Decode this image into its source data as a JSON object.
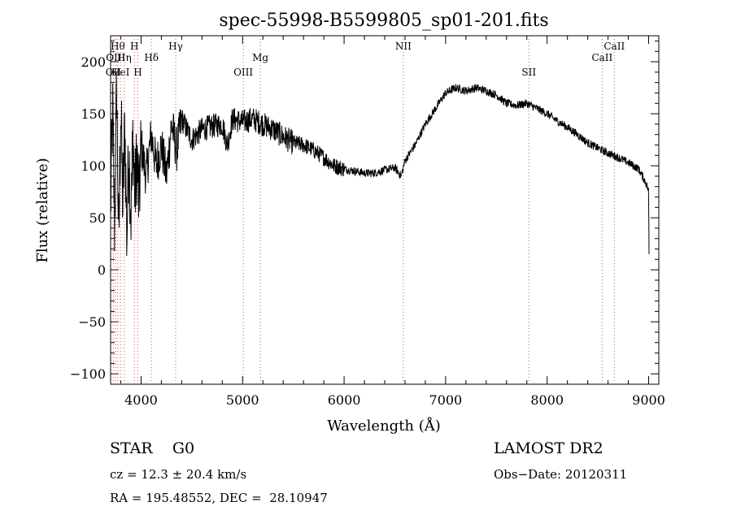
{
  "chart_data": {
    "type": "line",
    "title": "spec-55998-B5599805_sp01-201.fits",
    "xlabel": "Wavelength (Å)",
    "ylabel": "Flux (relative)",
    "xlim": [
      3700,
      9100
    ],
    "ylim": [
      -110,
      225
    ],
    "x_ticks": [
      4000,
      5000,
      6000,
      7000,
      8000,
      9000
    ],
    "y_ticks": [
      -100,
      -50,
      0,
      50,
      100,
      150,
      200
    ],
    "grid": false,
    "series": [
      {
        "x": [
          3700,
          3720,
          3740,
          3760,
          3780,
          3800,
          3820,
          3840,
          3860,
          3880,
          3900,
          3920,
          3940,
          3960,
          3980,
          4000,
          4050,
          4100,
          4150,
          4200,
          4250,
          4300,
          4350,
          4400,
          4500,
          4600,
          4700,
          4800,
          4850,
          4900,
          5000,
          5100,
          5200,
          5300,
          5400,
          5500,
          5600,
          5700,
          5800,
          5900,
          6000,
          6100,
          6200,
          6300,
          6400,
          6500,
          6563,
          6600,
          6700,
          6800,
          6900,
          7000,
          7100,
          7200,
          7300,
          7400,
          7500,
          7600,
          7700,
          7800,
          7900,
          8000,
          8100,
          8200,
          8300,
          8400,
          8500,
          8600,
          8700,
          8800,
          8900,
          8950,
          8980,
          9000,
          9005
        ],
        "y": [
          60,
          150,
          40,
          180,
          20,
          160,
          60,
          140,
          30,
          120,
          50,
          130,
          70,
          110,
          60,
          120,
          90,
          130,
          100,
          120,
          90,
          140,
          115,
          145,
          125,
          135,
          138,
          140,
          120,
          145,
          142,
          145,
          140,
          135,
          128,
          122,
          120,
          115,
          108,
          100,
          97,
          95,
          93,
          93,
          96,
          98,
          90,
          105,
          120,
          140,
          155,
          170,
          175,
          172,
          175,
          172,
          168,
          160,
          158,
          160,
          155,
          150,
          143,
          137,
          130,
          122,
          117,
          112,
          108,
          103,
          97,
          88,
          82,
          75,
          0
        ]
      }
    ],
    "line_labels": [
      {
        "wavelength": 3727,
        "label": "OII"
      },
      {
        "wavelength": 3750,
        "label": "OIII"
      },
      {
        "wavelength": 3771,
        "label": "Hθ"
      },
      {
        "wavelength": 3798,
        "label": "HeI"
      },
      {
        "wavelength": 3835,
        "label": "Hη"
      },
      {
        "wavelength": 3934,
        "label": "H"
      },
      {
        "wavelength": 3968,
        "label": "H"
      },
      {
        "wavelength": 4102,
        "label": "Hδ"
      },
      {
        "wavelength": 4341,
        "label": "Hγ"
      },
      {
        "wavelength": 5007,
        "label": "OIII"
      },
      {
        "wavelength": 5175,
        "label": "Mg"
      },
      {
        "wavelength": 6583,
        "label": "NII"
      },
      {
        "wavelength": 7820,
        "label": "SII"
      },
      {
        "wavelength": 8542,
        "label": "CaII"
      },
      {
        "wavelength": 8662,
        "label": "CaII"
      }
    ]
  },
  "info": {
    "class_line": "STAR    G0",
    "survey": "LAMOST DR2",
    "redshift": "cz = 12.3 ± 20.4 km/s",
    "obs_date": "Obs−Date: 20120311",
    "coords": "RA = 195.48552, DEC =  28.10947"
  }
}
